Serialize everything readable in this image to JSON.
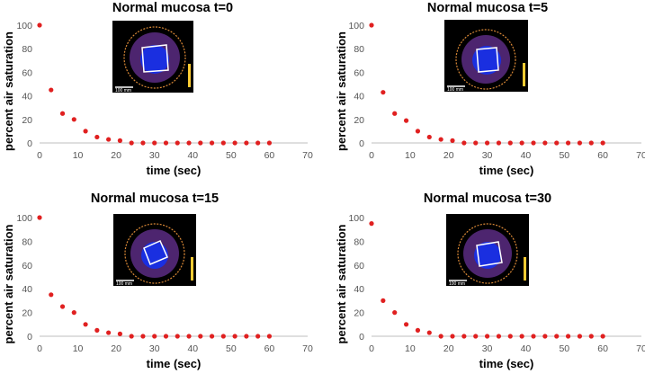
{
  "chart_data": [
    {
      "type": "scatter",
      "title": "Normal mucosa t=0",
      "xlabel": "time (sec)",
      "ylabel": "percent air saturation",
      "xlim": [
        0,
        70
      ],
      "ylim": [
        0,
        100
      ],
      "xticks": [
        0,
        10,
        20,
        30,
        40,
        50,
        60,
        70
      ],
      "yticks": [
        0,
        20,
        40,
        60,
        80,
        100
      ],
      "marker_color": "#e02020",
      "inset_scale_label": "100 mm",
      "series": [
        {
          "name": "",
          "x": [
            0,
            3,
            6,
            9,
            12,
            15,
            18,
            21,
            24,
            27,
            30,
            33,
            36,
            39,
            42,
            45,
            48,
            51,
            54,
            57,
            60
          ],
          "y": [
            100,
            45,
            25,
            20,
            10,
            5,
            3,
            2,
            0,
            0,
            0,
            0,
            0,
            0,
            0,
            0,
            0,
            0,
            0,
            0,
            0
          ]
        }
      ]
    },
    {
      "type": "scatter",
      "title": "Normal mucosa t=5",
      "xlabel": "time (sec)",
      "ylabel": "percent air saturation",
      "xlim": [
        0,
        70
      ],
      "ylim": [
        0,
        100
      ],
      "xticks": [
        0,
        10,
        20,
        30,
        40,
        50,
        60,
        70
      ],
      "yticks": [
        0,
        20,
        40,
        60,
        80,
        100
      ],
      "marker_color": "#e02020",
      "inset_scale_label": "100 mm",
      "series": [
        {
          "name": "",
          "x": [
            0,
            3,
            6,
            9,
            12,
            15,
            18,
            21,
            24,
            27,
            30,
            33,
            36,
            39,
            42,
            45,
            48,
            51,
            54,
            57,
            60
          ],
          "y": [
            100,
            43,
            25,
            19,
            10,
            5,
            3,
            2,
            0,
            0,
            0,
            0,
            0,
            0,
            0,
            0,
            0,
            0,
            0,
            0,
            0
          ]
        }
      ]
    },
    {
      "type": "scatter",
      "title": "Normal mucosa t=15",
      "xlabel": "time (sec)",
      "ylabel": "percent air saturation",
      "xlim": [
        0,
        70
      ],
      "ylim": [
        0,
        100
      ],
      "xticks": [
        0,
        10,
        20,
        30,
        40,
        50,
        60,
        70
      ],
      "yticks": [
        0,
        20,
        40,
        60,
        80,
        100
      ],
      "marker_color": "#e02020",
      "inset_scale_label": "100 mm",
      "series": [
        {
          "name": "",
          "x": [
            0,
            3,
            6,
            9,
            12,
            15,
            18,
            21,
            24,
            27,
            30,
            33,
            36,
            39,
            42,
            45,
            48,
            51,
            54,
            57,
            60
          ],
          "y": [
            100,
            35,
            25,
            20,
            10,
            5,
            3,
            2,
            0,
            0,
            0,
            0,
            0,
            0,
            0,
            0,
            0,
            0,
            0,
            0,
            0
          ]
        }
      ]
    },
    {
      "type": "scatter",
      "title": "Normal mucosa t=30",
      "xlabel": "time (sec)",
      "ylabel": "percent air saturation",
      "xlim": [
        0,
        70
      ],
      "ylim": [
        0,
        100
      ],
      "xticks": [
        0,
        10,
        20,
        30,
        40,
        50,
        60,
        70
      ],
      "yticks": [
        0,
        20,
        40,
        60,
        80,
        100
      ],
      "marker_color": "#e02020",
      "inset_scale_label": "100 mm",
      "series": [
        {
          "name": "",
          "x": [
            0,
            3,
            6,
            9,
            12,
            15,
            18,
            21,
            24,
            27,
            30,
            33,
            36,
            39,
            42,
            45,
            48,
            51,
            54,
            57,
            60
          ],
          "y": [
            95,
            30,
            20,
            10,
            5,
            3,
            0,
            0,
            0,
            0,
            0,
            0,
            0,
            0,
            0,
            0,
            0,
            0,
            0,
            0,
            0
          ]
        }
      ]
    }
  ]
}
